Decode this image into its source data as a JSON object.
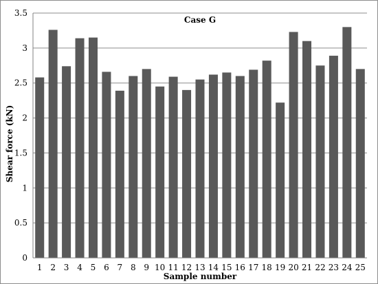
{
  "chart_data": {
    "type": "bar",
    "title": "Case G",
    "xlabel": "Sample number",
    "ylabel": "Shear force (kN)",
    "categories": [
      "1",
      "2",
      "3",
      "4",
      "5",
      "6",
      "7",
      "8",
      "9",
      "10",
      "11",
      "12",
      "13",
      "14",
      "15",
      "16",
      "17",
      "18",
      "19",
      "20",
      "21",
      "22",
      "23",
      "24",
      "25"
    ],
    "values": [
      2.58,
      3.26,
      2.74,
      3.14,
      3.15,
      2.66,
      2.39,
      2.6,
      2.7,
      2.45,
      2.59,
      2.4,
      2.55,
      2.62,
      2.65,
      2.6,
      2.69,
      2.82,
      2.22,
      3.23,
      3.1,
      2.75,
      2.89,
      3.3,
      2.7
    ],
    "ylim": [
      0,
      3.5
    ],
    "yticks": [
      "0",
      "0.5",
      "1",
      "1.5",
      "2",
      "2.5",
      "3",
      "3.5"
    ],
    "grid": true,
    "legend": "none",
    "colors": {
      "bar": "#595959",
      "grid": "#8c8c8c",
      "axis": "#808080"
    }
  }
}
